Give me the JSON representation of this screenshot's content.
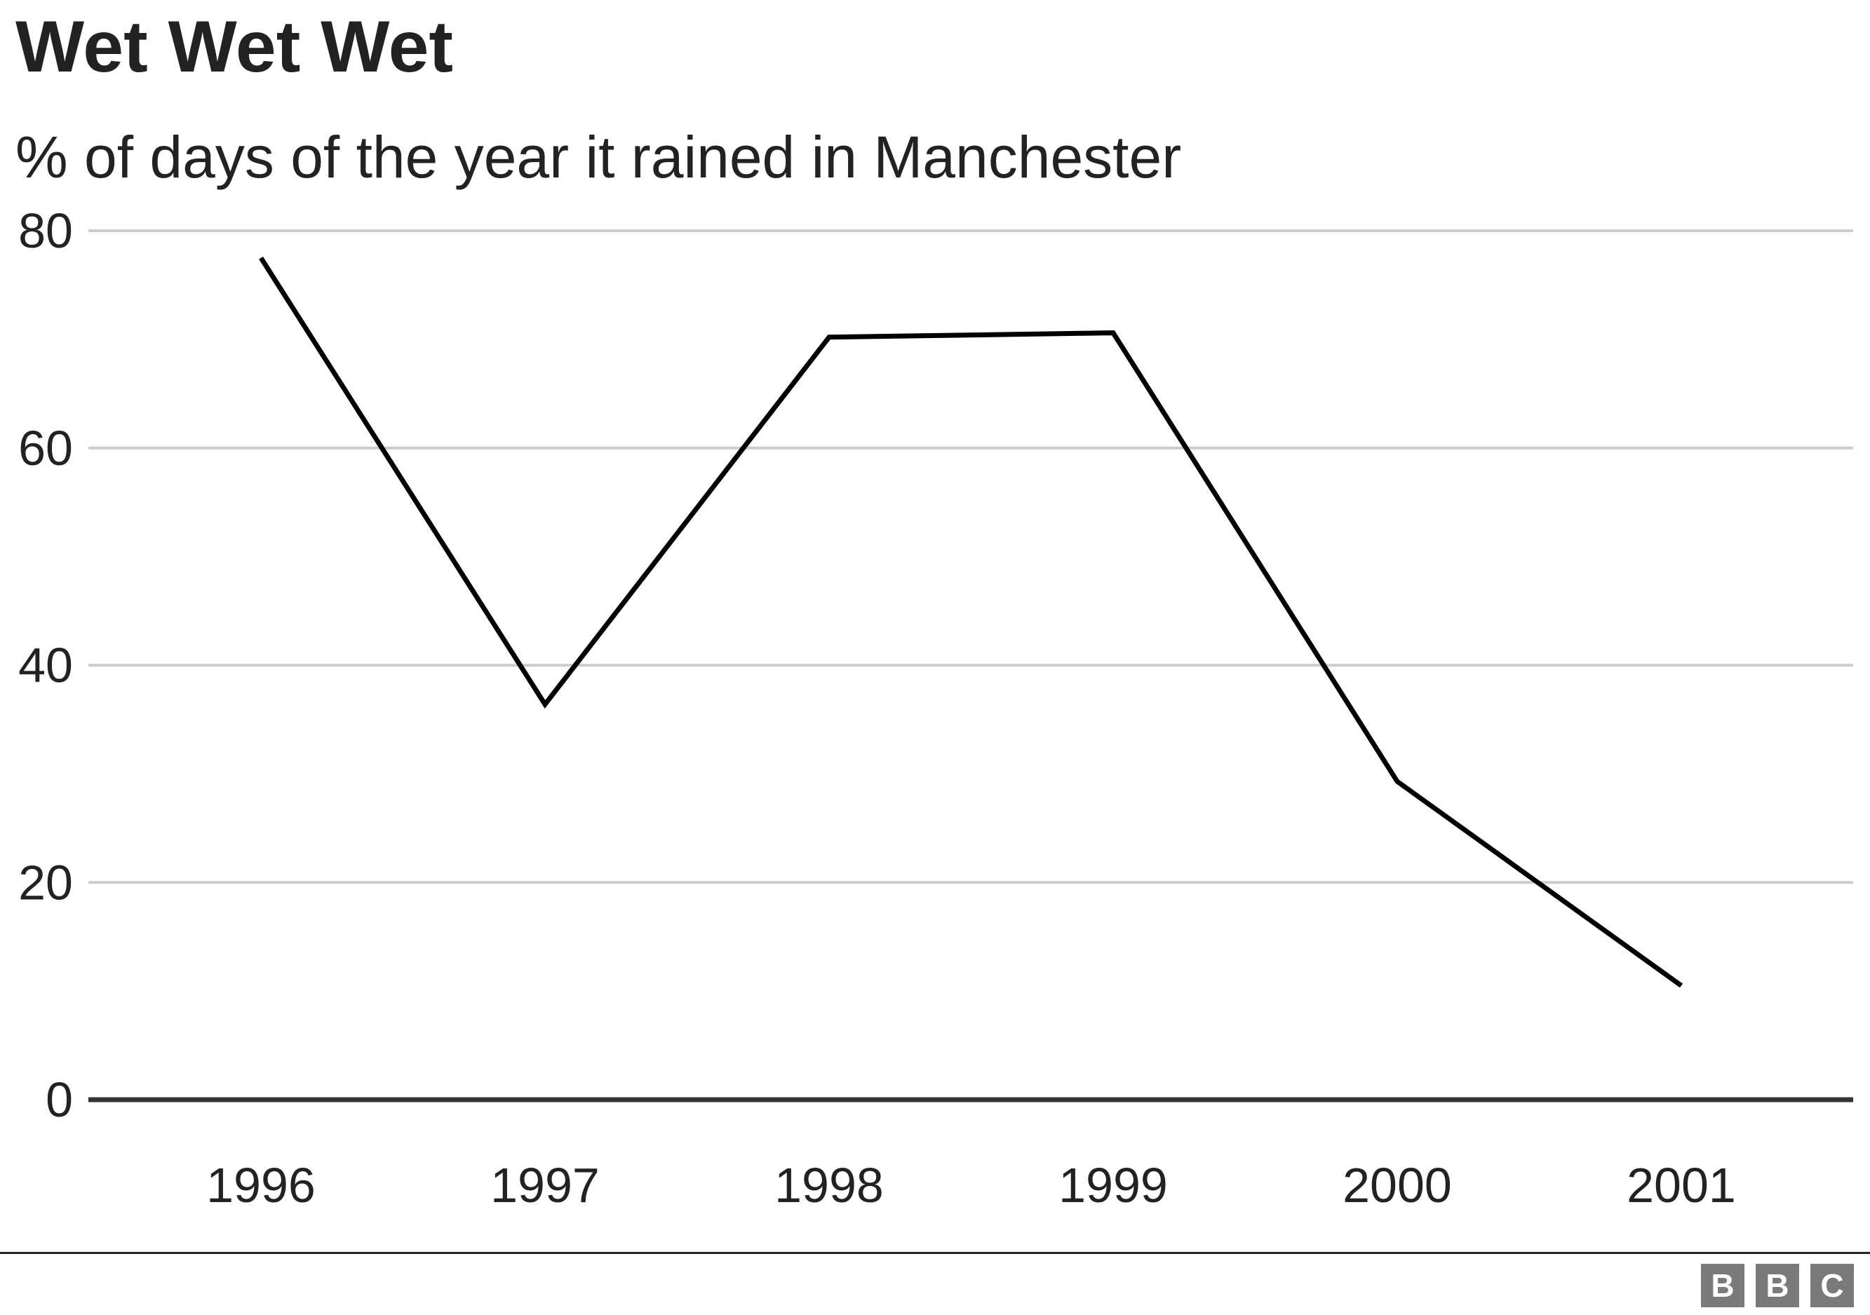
{
  "chart_data": {
    "type": "line",
    "title": "Wet Wet Wet",
    "subtitle": "% of days of the year it rained in Manchester",
    "xlabel": "",
    "ylabel": "",
    "categories": [
      "1996",
      "1997",
      "1998",
      "1999",
      "2000",
      "2001"
    ],
    "series": [
      {
        "values": [
          77.5,
          36.4,
          70.2,
          70.6,
          29.3,
          10.5
        ],
        "color": "#000000"
      }
    ],
    "ylim": [
      0,
      80
    ],
    "yticks": [
      0,
      20,
      40,
      60,
      80
    ],
    "grid": true,
    "gridline_color": "#cccccc",
    "baseline_color": "#333333",
    "legend": "none"
  },
  "branding": {
    "logo": [
      "B",
      "B",
      "C"
    ]
  }
}
